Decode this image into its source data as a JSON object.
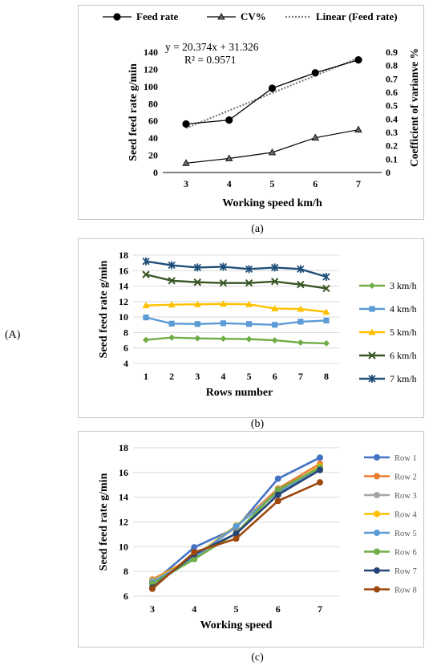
{
  "side_label": "(A)",
  "captions": {
    "a": "(a)",
    "b": "(b)",
    "c": "(c)"
  },
  "colors": {
    "feed": "#000000",
    "cv": "#000000",
    "linear": "#777777",
    "kmh3": "#70ad47",
    "kmh4": "#5b9bd5",
    "kmh5": "#ffc000",
    "kmh6": "#375623",
    "kmh7": "#1f4e79",
    "row1": "#4472c4",
    "row2": "#ed7d31",
    "row3": "#a5a5a5",
    "row4": "#ffc000",
    "row5": "#5b9bd5",
    "row6": "#70ad47",
    "row7": "#264478",
    "row8": "#9e480e"
  },
  "chart_data": [
    {
      "type": "line",
      "legend": [
        "Feed rate",
        "CV%",
        "Linear (Feed rate)"
      ],
      "equation": "y = 20.374x + 31.326",
      "r2": "R² = 0.9571",
      "x": [
        3,
        4,
        5,
        6,
        7
      ],
      "xlabel": "Working speed km/h",
      "ylabel": "Seed feed rate g/min",
      "y2label": "Coefficient of varianve %",
      "ylim": [
        0,
        140
      ],
      "y2lim": [
        0,
        0.9
      ],
      "yticks": [
        "0",
        "20",
        "40",
        "60",
        "80",
        "100",
        "120",
        "140"
      ],
      "y2ticks": [
        "0",
        "0.1",
        "0.2",
        "0.3",
        "0.4",
        "0.5",
        "0.6",
        "0.7",
        "0.8",
        "0.9"
      ],
      "xticks": [
        "3",
        "4",
        "5",
        "6",
        "7"
      ],
      "feed_rate": [
        56.5,
        61,
        98,
        116,
        131
      ],
      "cv": [
        0.07,
        0.105,
        0.15,
        0.26,
        0.32
      ],
      "linear": [
        51.7,
        72.1,
        92.5,
        112.8,
        133.2
      ]
    },
    {
      "type": "line",
      "x": [
        1,
        2,
        3,
        4,
        5,
        6,
        7,
        8
      ],
      "xlabel": "Rows number",
      "ylabel": "Seed feed rate g/min",
      "ylim": [
        4,
        18
      ],
      "yticks": [
        "4",
        "6",
        "8",
        "10",
        "12",
        "14",
        "16",
        "18"
      ],
      "xticks": [
        "1",
        "2",
        "3",
        "4",
        "5",
        "6",
        "7",
        "8"
      ],
      "series": [
        {
          "name": "3 km/h",
          "values": [
            7.05,
            7.35,
            7.25,
            7.2,
            7.15,
            7.0,
            6.7,
            6.6
          ]
        },
        {
          "name": "4 km/h",
          "values": [
            9.95,
            9.15,
            9.1,
            9.2,
            9.1,
            9.0,
            9.4,
            9.55
          ]
        },
        {
          "name": "5 km/h",
          "values": [
            11.5,
            11.6,
            11.65,
            11.7,
            11.65,
            11.1,
            11.05,
            10.65
          ]
        },
        {
          "name": "6 km/h",
          "values": [
            15.5,
            14.7,
            14.5,
            14.4,
            14.4,
            14.6,
            14.2,
            13.7
          ]
        },
        {
          "name": "7 km/h",
          "values": [
            17.2,
            16.7,
            16.4,
            16.5,
            16.2,
            16.4,
            16.2,
            15.2
          ]
        }
      ]
    },
    {
      "type": "line",
      "x": [
        3,
        4,
        5,
        6,
        7
      ],
      "xlabel": "Working speed",
      "ylabel": "Seed feed rate g/min",
      "ylim": [
        6,
        18
      ],
      "yticks": [
        "6",
        "8",
        "10",
        "12",
        "14",
        "16",
        "18"
      ],
      "xticks": [
        "3",
        "4",
        "5",
        "6",
        "7"
      ],
      "series": [
        {
          "name": "Row 1",
          "values": [
            7.05,
            9.95,
            11.5,
            15.5,
            17.2
          ]
        },
        {
          "name": "Row 2",
          "values": [
            7.35,
            9.15,
            11.6,
            14.7,
            16.7
          ]
        },
        {
          "name": "Row 3",
          "values": [
            7.25,
            9.1,
            11.65,
            14.5,
            16.4
          ]
        },
        {
          "name": "Row 4",
          "values": [
            7.2,
            9.2,
            11.7,
            14.4,
            16.5
          ]
        },
        {
          "name": "Row 5",
          "values": [
            7.15,
            9.1,
            11.65,
            14.4,
            16.2
          ]
        },
        {
          "name": "Row 6",
          "values": [
            7.0,
            9.0,
            11.1,
            14.6,
            16.4
          ]
        },
        {
          "name": "Row 7",
          "values": [
            6.7,
            9.4,
            11.05,
            14.2,
            16.2
          ]
        },
        {
          "name": "Row 8",
          "values": [
            6.6,
            9.55,
            10.65,
            13.7,
            15.2
          ]
        }
      ]
    }
  ]
}
